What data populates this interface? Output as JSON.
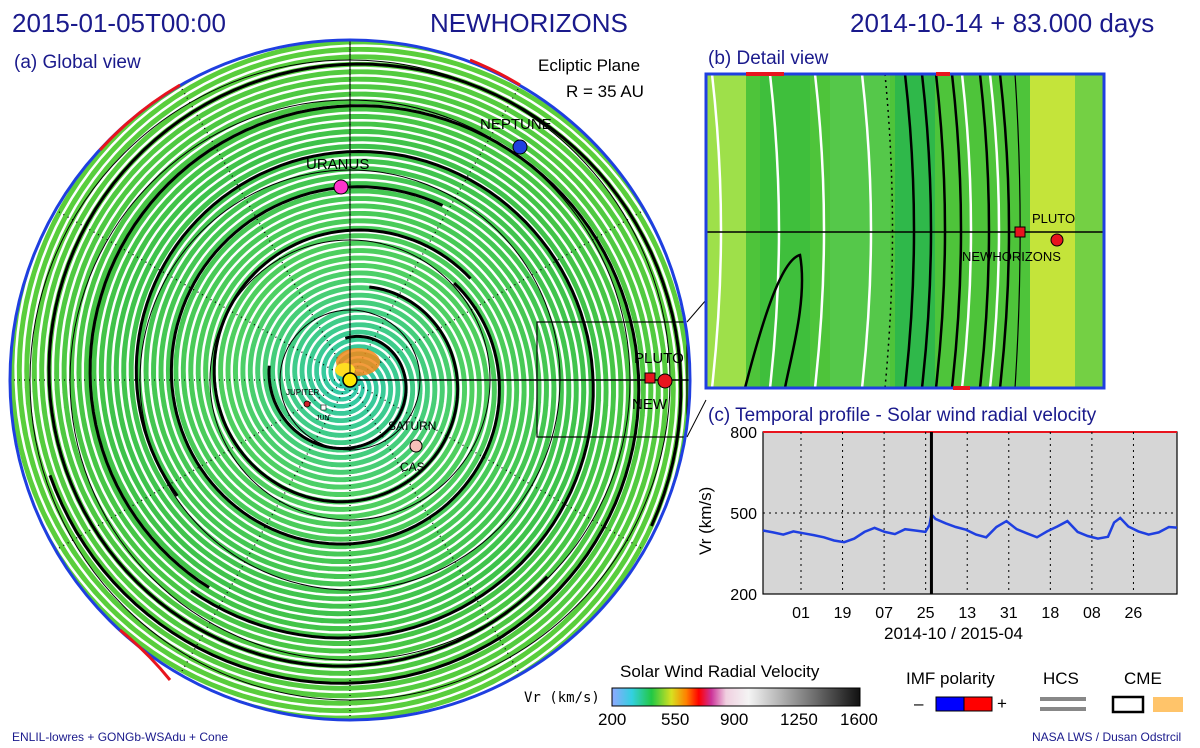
{
  "header": {
    "datetime": "2015-01-05T00:00",
    "spacecraft": "NEWHORIZONS",
    "elapsed": "2014-10-14 + 83.000 days"
  },
  "global_view": {
    "title": "(a) Global view",
    "plane": "Ecliptic Plane",
    "radius": "R = 35 AU",
    "bodies": [
      {
        "name": "NEPTUNE",
        "color": "#1f3fe0"
      },
      {
        "name": "URANUS",
        "color": "#ff33cc"
      },
      {
        "name": "SATURN",
        "color": "#f5c0b8"
      },
      {
        "name": "JUPITER",
        "color": "#d0202a"
      },
      {
        "name": "PLUTO",
        "color": "#e8141e"
      },
      {
        "name": "NEW",
        "color": "#e8141e"
      },
      {
        "name": "CAS",
        "color": "#f5c0b8"
      },
      {
        "name": "JUN",
        "color": "#ffffff"
      }
    ]
  },
  "detail_view": {
    "title": "(b) Detail view",
    "labels": [
      "PLUTO",
      "NEWHORIZONS"
    ]
  },
  "chart_data": {
    "type": "line",
    "title": "(c) Temporal profile - Solar wind radial velocity",
    "xlabel": "2014-10 / 2015-04",
    "ylabel": "Vr (km/s)",
    "ylim": [
      200,
      800
    ],
    "yticks": [
      200,
      500,
      800
    ],
    "xtick_labels": [
      "01",
      "19",
      "07",
      "25",
      "13",
      "31",
      "18",
      "08",
      "26"
    ],
    "grid": true,
    "current_time_day": 83,
    "series": [
      {
        "color": "#1f3fe0",
        "x": [
          0,
          5,
          10,
          15,
          20,
          25,
          30,
          35,
          40,
          45,
          50,
          55,
          60,
          65,
          70,
          75,
          80,
          82,
          83,
          85,
          90,
          95,
          100,
          105,
          110,
          115,
          120,
          125,
          130,
          135,
          140,
          145,
          150,
          155,
          160,
          165,
          170,
          173,
          176,
          180,
          185,
          190,
          195,
          200,
          204
        ],
        "values": [
          435,
          428,
          420,
          432,
          425,
          418,
          410,
          398,
          392,
          405,
          430,
          445,
          430,
          422,
          440,
          435,
          430,
          455,
          495,
          478,
          462,
          448,
          438,
          420,
          410,
          448,
          470,
          440,
          425,
          410,
          432,
          450,
          470,
          430,
          415,
          405,
          412,
          465,
          482,
          450,
          432,
          420,
          428,
          448,
          446
        ]
      }
    ]
  },
  "colorbar": {
    "title": "Solar Wind Radial Velocity",
    "unit_label": "Vr (km/s)",
    "ticks": [
      "200",
      "550",
      "900",
      "1250",
      "1600"
    ]
  },
  "legend": {
    "imf": "IMF polarity",
    "hcs": "HCS",
    "cme": "CME",
    "minus": "–",
    "plus": "+",
    "imf_colors": [
      "#0000ff",
      "#ff0000"
    ],
    "hcs_color": "#888888",
    "cme_color": "#ffc46a"
  },
  "footer": {
    "left": "ENLIL-lowres + GONGb-WSAdu + Cone",
    "right": "NASA LWS / Dusan Odstrcil"
  }
}
